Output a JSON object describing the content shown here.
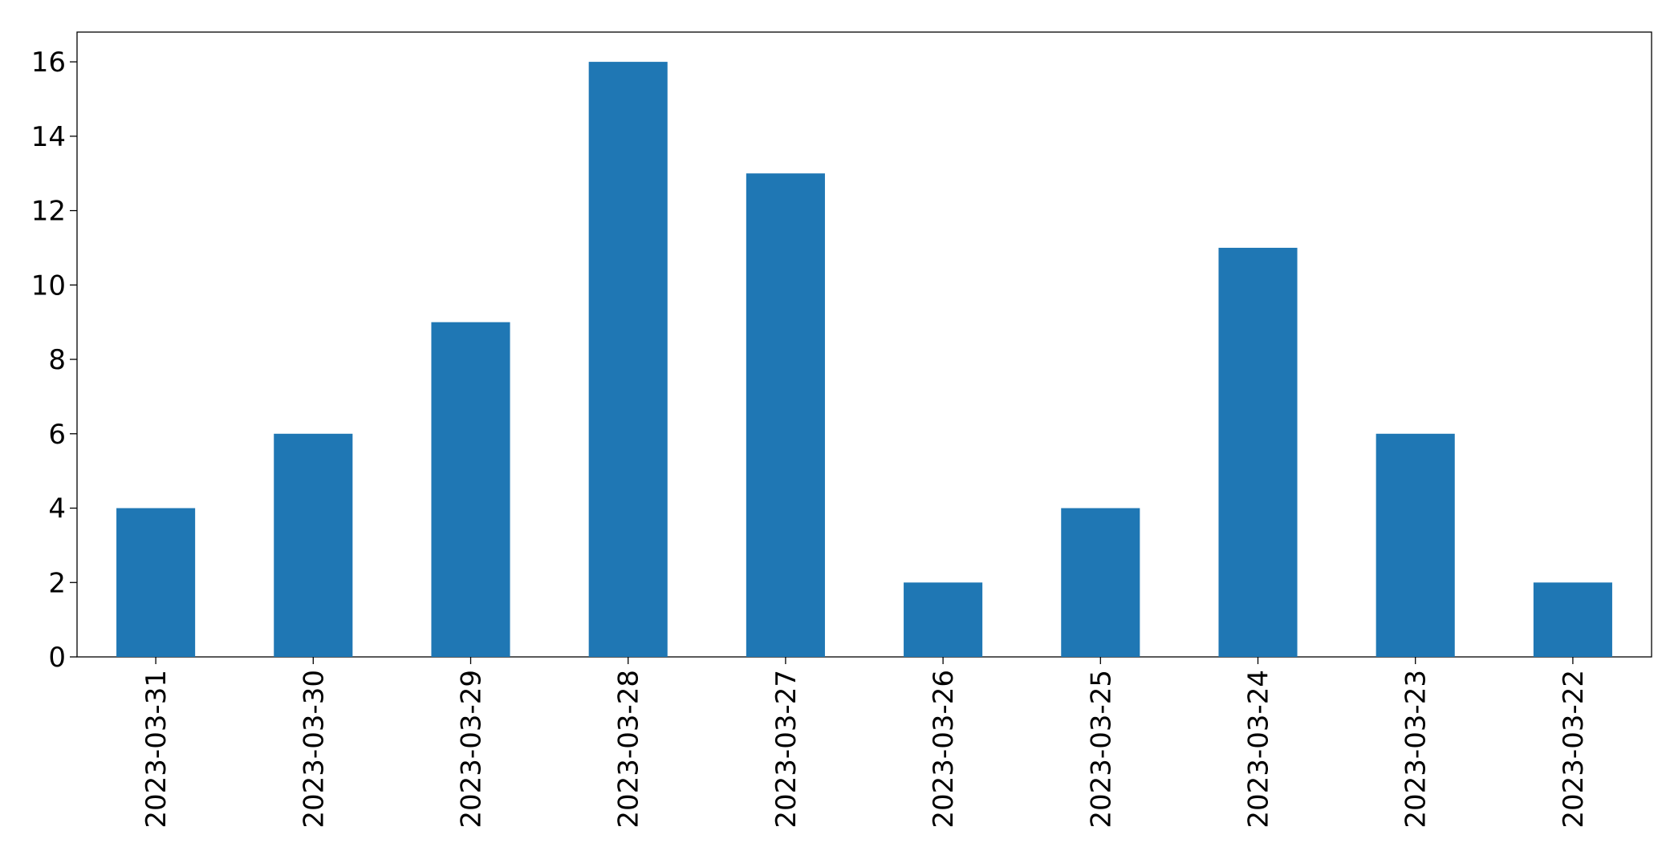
{
  "chart_data": {
    "type": "bar",
    "categories": [
      "2023-03-31",
      "2023-03-30",
      "2023-03-29",
      "2023-03-28",
      "2023-03-27",
      "2023-03-26",
      "2023-03-25",
      "2023-03-24",
      "2023-03-23",
      "2023-03-22"
    ],
    "values": [
      4,
      6,
      9,
      16,
      13,
      2,
      4,
      11,
      6,
      2
    ],
    "color": "#1f77b4",
    "ylim": [
      0,
      16.8
    ],
    "yticks": [
      0,
      2,
      4,
      6,
      8,
      10,
      12,
      14,
      16
    ],
    "grid": false
  }
}
